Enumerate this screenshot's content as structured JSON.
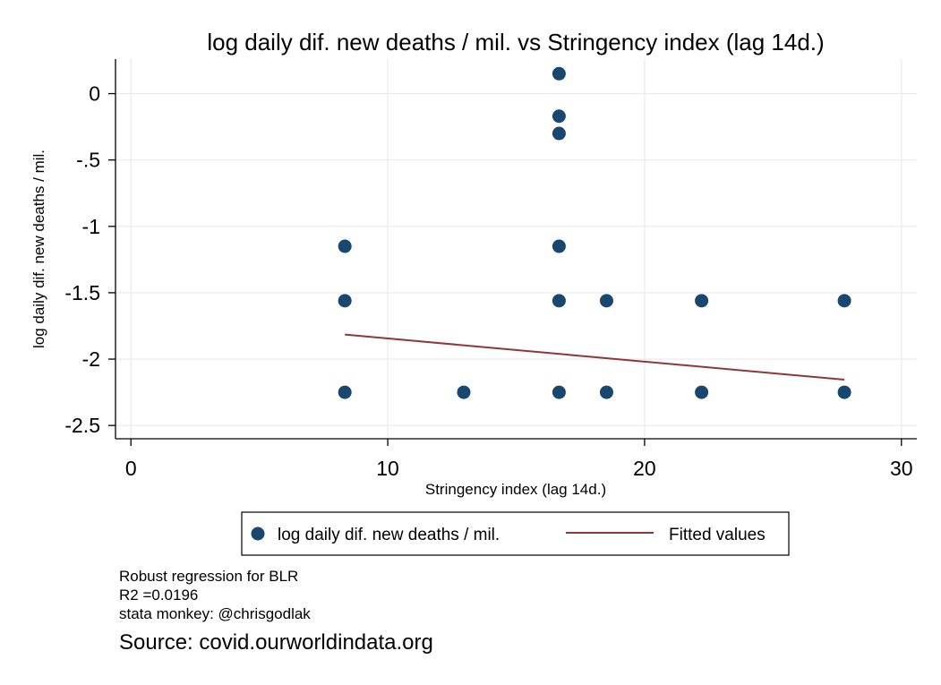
{
  "chart_data": {
    "type": "scatter",
    "title": "log daily dif. new deaths / mil. vs Stringency index (lag 14d.)",
    "xlabel": "Stringency index (lag 14d.)",
    "ylabel": "log daily dif. new deaths / mil.",
    "xlim": [
      -0.6,
      30.6
    ],
    "ylim": [
      -2.6,
      0.26
    ],
    "x_ticks": [
      0,
      10,
      20,
      30
    ],
    "x_tick_labels": [
      "0",
      "10",
      "20",
      "30"
    ],
    "y_ticks": [
      0,
      -0.5,
      -1,
      -1.5,
      -2,
      -2.5
    ],
    "y_tick_labels": [
      "0",
      "-.5",
      "-1",
      "-1.5",
      "-2",
      "-2.5"
    ],
    "grid": true,
    "legend_position": "bottom",
    "series": [
      {
        "name": "log daily dif. new deaths / mil.",
        "kind": "scatter",
        "color": "#1a476f",
        "points": [
          [
            8.33,
            -1.15
          ],
          [
            8.33,
            -1.56
          ],
          [
            8.33,
            -2.25
          ],
          [
            12.96,
            -2.25
          ],
          [
            16.67,
            0.15
          ],
          [
            16.67,
            -0.17
          ],
          [
            16.67,
            -0.3
          ],
          [
            16.67,
            -1.15
          ],
          [
            16.67,
            -1.56
          ],
          [
            16.67,
            -2.25
          ],
          [
            18.52,
            -1.56
          ],
          [
            18.52,
            -2.25
          ],
          [
            22.22,
            -1.56
          ],
          [
            22.22,
            -2.25
          ],
          [
            27.78,
            -1.56
          ],
          [
            27.78,
            -2.25
          ]
        ]
      },
      {
        "name": "Fitted values",
        "kind": "line",
        "color": "#90353b",
        "points": [
          [
            8.33,
            -1.815
          ],
          [
            27.78,
            -2.155
          ]
        ]
      }
    ]
  },
  "notes": [
    "Robust regression for BLR",
    "R2 =0.0196",
    "stata monkey: @chrisgodlak"
  ],
  "source": "Source: covid.ourworldindata.org"
}
